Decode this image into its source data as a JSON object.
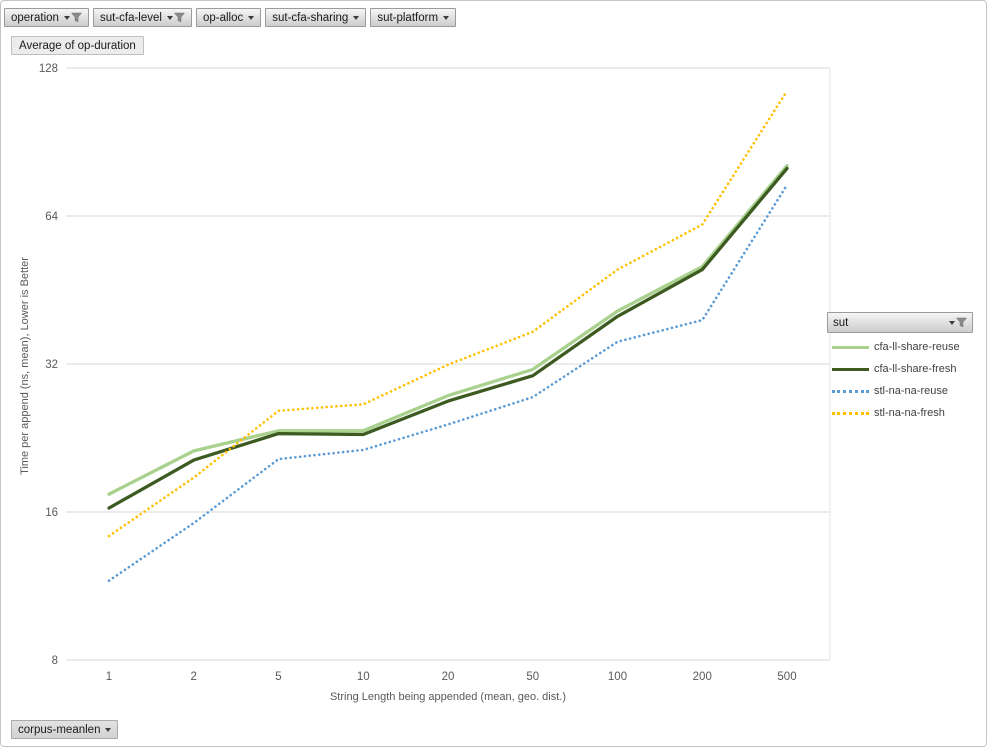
{
  "pivot_fields_top": [
    {
      "label": "operation",
      "filtered": true
    },
    {
      "label": "sut-cfa-level",
      "filtered": true
    },
    {
      "label": "op-alloc",
      "filtered": false
    },
    {
      "label": "sut-cfa-sharing",
      "filtered": false
    },
    {
      "label": "sut-platform",
      "filtered": false
    }
  ],
  "value_field": {
    "label": "Average of op-duration"
  },
  "axis_field": {
    "label": "corpus-meanlen",
    "filtered": false
  },
  "legend": {
    "field_button": {
      "label": "sut",
      "filtered": true
    }
  },
  "chart_data": {
    "type": "line",
    "title": "Average of op-duration",
    "xlabel": "String Length being appended (mean, geo. dist.)",
    "ylabel": "Time per append (ns, mean), Lower is Better",
    "x_scale": "log-category",
    "y_scale": "log2",
    "ylim": [
      8,
      128
    ],
    "y_ticks": [
      8,
      16,
      32,
      64,
      128
    ],
    "grid": "horizontal",
    "legend_position": "right",
    "categories": [
      "1",
      "2",
      "5",
      "10",
      "20",
      "50",
      "100",
      "200",
      "500"
    ],
    "series": [
      {
        "name": "cfa-ll-share-reuse",
        "color": "#a9d18e",
        "line_style": "solid",
        "values": [
          17.4,
          21.3,
          23.4,
          23.4,
          27.6,
          31.2,
          41.0,
          50.5,
          81.0
        ]
      },
      {
        "name": "cfa-ll-share-fresh",
        "color": "#3d5b21",
        "line_style": "solid",
        "values": [
          16.3,
          20.4,
          23.1,
          23.0,
          26.9,
          30.3,
          40.0,
          49.8,
          80.0
        ]
      },
      {
        "name": "stl-na-na-reuse",
        "color": "#5b9bd5",
        "line_style": "dotted",
        "values": [
          11.6,
          15.2,
          20.5,
          21.4,
          24.1,
          27.4,
          35.5,
          39.3,
          74.0
        ]
      },
      {
        "name": "stl-na-na-fresh",
        "color": "#ffc000",
        "line_style": "dotted",
        "values": [
          14.3,
          18.8,
          25.7,
          26.5,
          31.9,
          37.2,
          49.8,
          61.5,
          115.0
        ]
      }
    ]
  },
  "colors": {
    "gridline": "#d9d9d9",
    "plot_right_border": "#e3e3e3",
    "axis_text": "#595959",
    "legend_text": "#404040",
    "funnel_icon": "#8a8a8a"
  }
}
